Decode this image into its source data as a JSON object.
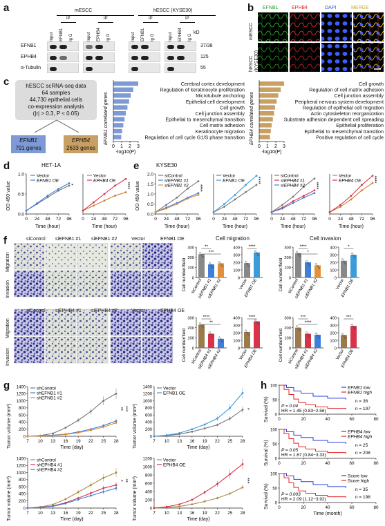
{
  "panels": {
    "a": "a",
    "b": "b",
    "c": "c",
    "d": "d",
    "e": "e",
    "f": "f",
    "g": "g",
    "h": "h"
  },
  "panel_a": {
    "group1_title": "mESCC",
    "group2_title": "hESCC (KYSE30)",
    "ip_label": "IP",
    "kd_label": "kD",
    "row_labels": [
      "EFNB1",
      "EPHB4",
      "α-Tubulin"
    ],
    "lane_headers_1": [
      "Input",
      "EFNB1",
      "Ig G",
      "Input",
      "EPHB4",
      "Ig G"
    ],
    "lane_headers_2": [
      "Input",
      "EFNB1",
      "Ig G",
      "Input",
      "EPHB4",
      "Ig G"
    ],
    "kd_values": [
      "37/38",
      "125",
      "55"
    ]
  },
  "panel_b": {
    "channels": [
      "EFNB1",
      "EPHB4",
      "DAPI",
      "MERGE"
    ],
    "channel_colors": [
      "#22c222",
      "#e02020",
      "#3a5cff",
      "#e0c020"
    ],
    "rows": [
      "mESCC",
      "hESCC (KYSE30)"
    ]
  },
  "panel_c": {
    "box_lines": [
      "hESCC scRNA-seq data",
      "64 samples",
      "44,730 epithelial cells",
      "co-expression analysis",
      "(|r| > 0.3, P < 0.05)"
    ],
    "efnb1_box": {
      "name": "EFNB1",
      "count": "791 genes",
      "color": "#7d99d6"
    },
    "ephb4_box": {
      "name": "EPHB4",
      "count": "2633 genes",
      "color": "#c8a064"
    },
    "efnb1_axis": "EFNB1 correlated genes",
    "ephb4_axis": "EPHB4 correlated genes",
    "xlabel": "-log10(P)",
    "ticks": [
      "0",
      "1",
      "2",
      "3"
    ],
    "efnb1_terms": [
      "Cerebral cortex development",
      "Regulation of keratinocyte proliferation",
      "Microtubule anchoring",
      "Epithelial cell development",
      "Cell growth",
      "Cell junction assembly",
      "Epithelial to mesenchymal transition",
      "Cell matrix adhesion",
      "Keratinocyte migration",
      "Regulation of cell cycle G1/S phase transition"
    ],
    "efnb1_values": [
      3.0,
      2.4,
      2.1,
      1.9,
      1.7,
      1.5,
      1.35,
      1.2,
      1.05,
      0.95
    ],
    "ephb4_terms": [
      "Cell growth",
      "Regulation of cell matrix adhesion",
      "Cell junction assembly",
      "Peripheral nervous system development",
      "Regulation of epithelial cell migration",
      "Actin cytoskeleton reorganization",
      "Substrate adhesion dependent cell spreading",
      "Epithelial proliferation",
      "Epithelial to mesenchymal transition",
      "Positive regulation of cell cycle"
    ],
    "ephb4_values": [
      3.0,
      2.6,
      2.3,
      2.1,
      1.9,
      1.8,
      1.65,
      1.5,
      1.4,
      1.3
    ]
  },
  "panel_d": {
    "title": "HET-1A",
    "ylabel": "OD 450 value",
    "xlabel": "Time (hour)",
    "xticks": [
      "0",
      "24",
      "48",
      "72",
      "96"
    ],
    "yticks": [
      "0.0",
      "0.5",
      "1.0"
    ],
    "plots": [
      {
        "legend": [
          "Vector",
          "EFNB1 OE"
        ],
        "colors": [
          "#777777",
          "#3d7fd9"
        ],
        "series": [
          [
            0.1,
            0.3,
            0.5,
            0.7,
            0.85
          ],
          [
            0.1,
            0.32,
            0.55,
            0.75,
            0.92
          ]
        ],
        "sig": "*"
      },
      {
        "legend": [
          "Vector",
          "EPHB4 OE"
        ],
        "colors": [
          "#d17b2b",
          "#d8334a"
        ],
        "series": [
          [
            0.1,
            0.25,
            0.4,
            0.55,
            0.65
          ],
          [
            0.1,
            0.35,
            0.6,
            0.85,
            1.05
          ]
        ],
        "sig": "****"
      }
    ]
  },
  "panel_e": {
    "title": "KYSE30",
    "ylabel": "OD 450 value",
    "xlabel": "Time (hour)",
    "xticks": [
      "0",
      "24",
      "48",
      "72",
      "96"
    ],
    "yticks": [
      "0.0",
      "0.5",
      "1.0",
      "1.5",
      "2.0"
    ],
    "plots": [
      {
        "legend": [
          "siControl",
          "siEFNB1 #1",
          "siEFNB1 #2"
        ],
        "colors": [
          "#777777",
          "#3d7fd9",
          "#e08a2b"
        ],
        "series": [
          [
            0.1,
            0.5,
            0.9,
            1.4,
            1.8
          ],
          [
            0.1,
            0.35,
            0.6,
            0.9,
            1.15
          ],
          [
            0.1,
            0.3,
            0.55,
            0.85,
            1.05
          ]
        ],
        "sig": "****"
      },
      {
        "legend": [
          "Vector",
          "EFNB1 OE"
        ],
        "colors": [
          "#777777",
          "#3d9bd9"
        ],
        "series": [
          [
            0.1,
            0.4,
            0.8,
            1.2,
            1.6
          ],
          [
            0.1,
            0.55,
            1.05,
            1.6,
            2.1
          ]
        ],
        "sig": "****"
      },
      {
        "legend": [
          "siControl",
          "siEPHB4 #1",
          "siEPHB4 #2"
        ],
        "colors": [
          "#777777",
          "#d8334a",
          "#3d7fd9"
        ],
        "series": [
          [
            0.1,
            0.5,
            0.95,
            1.5,
            1.95
          ],
          [
            0.1,
            0.35,
            0.7,
            1.0,
            1.3
          ],
          [
            0.1,
            0.3,
            0.6,
            0.9,
            1.15
          ]
        ],
        "sig": "****"
      },
      {
        "legend": [
          "Vector",
          "EPHB4 OE"
        ],
        "colors": [
          "#d17b2b",
          "#d8334a"
        ],
        "series": [
          [
            0.1,
            0.4,
            0.8,
            1.3,
            1.7
          ],
          [
            0.1,
            0.5,
            1.0,
            1.6,
            2.1
          ]
        ],
        "sig": "****"
      }
    ]
  },
  "panel_f": {
    "row_labels": [
      "Migration",
      "Invasion"
    ],
    "headers_top": [
      "siControl",
      "siEFNB1 #1",
      "siEFNB1 #2",
      "Vector",
      "EFNB1 OE"
    ],
    "headers_bottom": [
      "siControl",
      "siEPHB4 #1",
      "siEPHB4 #2",
      "Vector",
      "EPHB4 OE"
    ],
    "migration_title": "Cell migration",
    "invasion_title": "Cell invasion",
    "ylabel": "Cell number/field",
    "charts": [
      {
        "cats": [
          "siControl",
          "siEFNB1 #1",
          "siEFNB1 #2"
        ],
        "values": [
          230,
          130,
          140
        ],
        "colors": [
          "#888888",
          "#3d7fd9",
          "#e0913b"
        ],
        "sig": [
          "**",
          "***"
        ],
        "yticks": [
          "0",
          "100",
          "200",
          "300"
        ],
        "ymax": 300
      },
      {
        "cats": [
          "Vector",
          "EFNB1 OE"
        ],
        "values": [
          190,
          330
        ],
        "colors": [
          "#888888",
          "#3d9bd9"
        ],
        "sig": [
          "****"
        ],
        "yticks": [
          "0",
          "100",
          "200",
          "300",
          "400"
        ],
        "ymax": 400
      },
      {
        "cats": [
          "siControl",
          "siEFNB1 #1",
          "siEFNB1 #2"
        ],
        "values": [
          240,
          150,
          120
        ],
        "colors": [
          "#888888",
          "#3d7fd9",
          "#e0913b"
        ],
        "sig": [
          "****",
          "*"
        ],
        "yticks": [
          "0",
          "100",
          "200",
          "300"
        ],
        "ymax": 300
      },
      {
        "cats": [
          "Vector",
          "EFNB1 OE"
        ],
        "values": [
          220,
          300
        ],
        "colors": [
          "#888888",
          "#3d9bd9"
        ],
        "sig": [
          "*"
        ],
        "yticks": [
          "0",
          "100",
          "200",
          "300",
          "400"
        ],
        "ymax": 400
      },
      {
        "cats": [
          "siControl",
          "siEPHB4 #1",
          "siEPHB4 #2"
        ],
        "values": [
          230,
          140,
          90
        ],
        "colors": [
          "#9b7a4b",
          "#d8334a",
          "#3d7fd9"
        ],
        "sig": [
          "****",
          "**"
        ],
        "yticks": [
          "0",
          "100",
          "200",
          "300"
        ],
        "ymax": 300
      },
      {
        "cats": [
          "Vector",
          "EPHB4 OE"
        ],
        "values": [
          210,
          350
        ],
        "colors": [
          "#9b7a4b",
          "#d8334a"
        ],
        "sig": [
          "****"
        ],
        "yticks": [
          "0",
          "100",
          "200",
          "300",
          "400"
        ],
        "ymax": 400
      },
      {
        "cats": [
          "siControl",
          "siEPHB4 #1",
          "siEPHB4 #2"
        ],
        "values": [
          200,
          140,
          130
        ],
        "colors": [
          "#9b7a4b",
          "#d8334a",
          "#3d7fd9"
        ],
        "sig": [
          "***",
          "****"
        ],
        "yticks": [
          "0",
          "100",
          "200",
          "300"
        ],
        "ymax": 300
      },
      {
        "cats": [
          "Vector",
          "EPHB4 OE"
        ],
        "values": [
          170,
          290
        ],
        "colors": [
          "#9b7a4b",
          "#d8334a"
        ],
        "sig": [
          "***"
        ],
        "yticks": [
          "0",
          "100",
          "200",
          "300",
          "400"
        ],
        "ymax": 400
      }
    ]
  },
  "panel_g": {
    "ylabel": "Tumor volume (mm³)",
    "xlabel": "Time (day)",
    "xticks": [
      "7",
      "10",
      "13",
      "16",
      "19",
      "22",
      "25",
      "28"
    ],
    "plots": [
      {
        "legend": [
          "shControl",
          "shEFNB1 #1",
          "shEFNB1 #2"
        ],
        "colors": [
          "#777777",
          "#3d7fd9",
          "#e08a2b"
        ],
        "yticks": [
          "0",
          "200",
          "400",
          "600",
          "800",
          "1000",
          "1200",
          "1400"
        ],
        "ymax": 1400,
        "series": [
          [
            0,
            20,
            80,
            240,
            450,
            700,
            1000,
            1200
          ],
          [
            0,
            10,
            30,
            60,
            120,
            200,
            300,
            430
          ],
          [
            0,
            8,
            25,
            50,
            100,
            170,
            260,
            380
          ]
        ],
        "sig": [
          "**",
          "***"
        ]
      },
      {
        "legend": [
          "Vector",
          "EFNB1 OE"
        ],
        "colors": [
          "#777777",
          "#3d9bd9"
        ],
        "yticks": [
          "0",
          "200",
          "400",
          "600",
          "800",
          "1000",
          "1200",
          "1400"
        ],
        "ymax": 1400,
        "series": [
          [
            0,
            20,
            60,
            130,
            220,
            320,
            500,
            750
          ],
          [
            0,
            30,
            90,
            200,
            330,
            500,
            800,
            1220
          ]
        ],
        "sig": [
          "*"
        ]
      },
      {
        "legend": [
          "shControl",
          "shEPHB4 #1",
          "shEPHB4 #2"
        ],
        "colors": [
          "#a98846",
          "#d8334a",
          "#3d7fd9"
        ],
        "yticks": [
          "0",
          "200",
          "400",
          "600",
          "800",
          "1000",
          "1200",
          "1400"
        ],
        "ymax": 1400,
        "series": [
          [
            0,
            30,
            100,
            250,
            450,
            650,
            850,
            1000
          ],
          [
            0,
            20,
            60,
            150,
            280,
            420,
            560,
            650
          ],
          [
            0,
            15,
            50,
            130,
            240,
            350,
            460,
            560
          ]
        ],
        "sig": [
          "*",
          "**"
        ]
      },
      {
        "legend": [
          "Vector",
          "EPHB4 OE"
        ],
        "colors": [
          "#a98846",
          "#d8334a"
        ],
        "yticks": [
          "0",
          "200",
          "400",
          "600",
          "800",
          "1000",
          "1200"
        ],
        "ymax": 1200,
        "series": [
          [
            0,
            15,
            40,
            90,
            160,
            240,
            350,
            500
          ],
          [
            0,
            30,
            90,
            200,
            380,
            580,
            820,
            1060
          ]
        ],
        "sig": [
          "***"
        ]
      }
    ]
  },
  "panel_h": {
    "ylabel": "Survival (%)",
    "xlabel": "Time (month)",
    "xticks": [
      "0",
      "20",
      "40",
      "60",
      "80"
    ],
    "yticks": [
      "0",
      "50",
      "100"
    ],
    "plots": [
      {
        "legend": [
          "EFNB1 low",
          "EFNB1 high"
        ],
        "colors": [
          "#2a3fd6",
          "#e02424"
        ],
        "n": [
          "n = 36",
          "n = 197"
        ],
        "p": "P = 0.04",
        "hr": "HR = 1.45 (0.83−2.56)"
      },
      {
        "legend": [
          "EPHB4 low",
          "EPHB4 high"
        ],
        "colors": [
          "#2a3fd6",
          "#e02424"
        ],
        "n": [
          "n = 25",
          "n = 208"
        ],
        "p": "P = 0.05",
        "hr": "HR = 1.67 (0.84−3.33)"
      },
      {
        "legend": [
          "Score low",
          "Score high"
        ],
        "colors": [
          "#2a3fd6",
          "#e02424"
        ],
        "n": [
          "n = 35",
          "n = 198"
        ],
        "p": "P = 0.003",
        "hr": "HR = 2.09 (1.12−3.92)"
      }
    ]
  }
}
